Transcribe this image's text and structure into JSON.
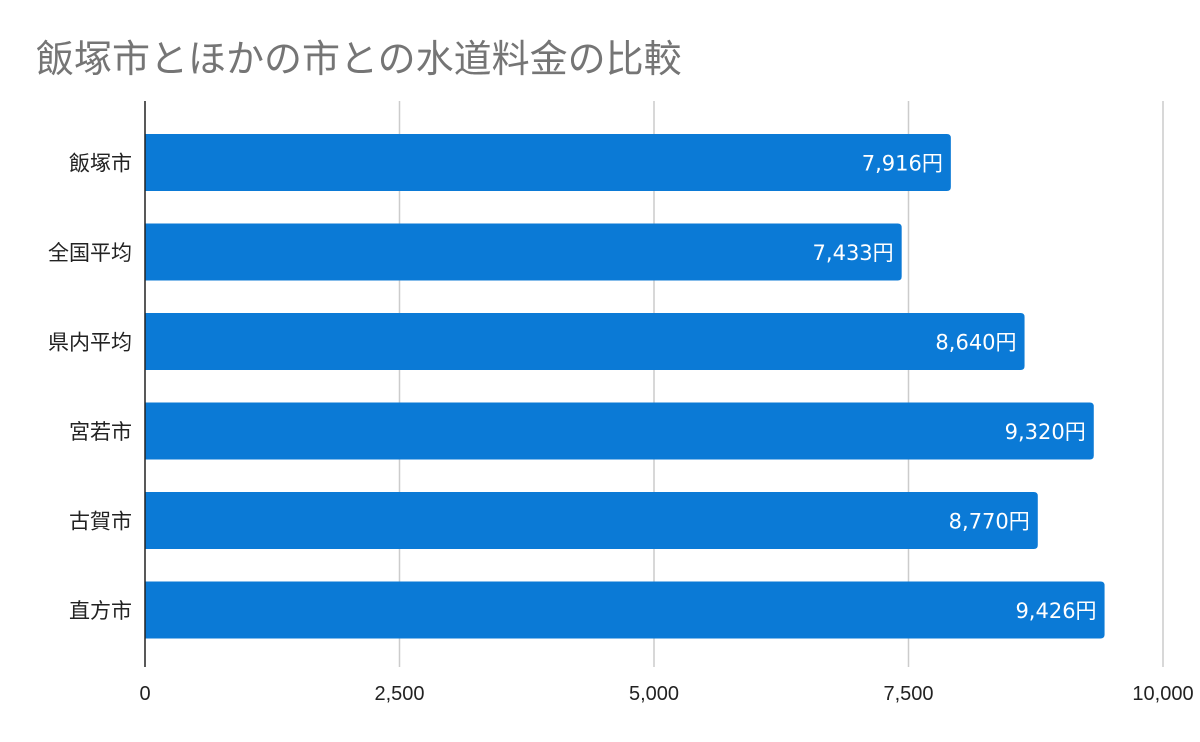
{
  "chart_data": {
    "type": "bar",
    "orientation": "horizontal",
    "title": "飯塚市とほかの市との水道料金の比較",
    "categories": [
      "飯塚市",
      "全国平均",
      "県内平均",
      "宮若市",
      "古賀市",
      "直方市"
    ],
    "values": [
      7916,
      7433,
      8640,
      9320,
      8770,
      9426
    ],
    "value_labels": [
      "7,916円",
      "7,433円",
      "8,640円",
      "9,320円",
      "8,770円",
      "9,426円"
    ],
    "xlim": [
      0,
      10000
    ],
    "x_ticks": [
      0,
      2500,
      5000,
      7500,
      10000
    ],
    "x_tick_labels": [
      "0",
      "2,500",
      "5,000",
      "7,500",
      "10,000"
    ],
    "xlabel": "",
    "ylabel": "",
    "grid": true,
    "bar_color": "#0b7ad6"
  }
}
